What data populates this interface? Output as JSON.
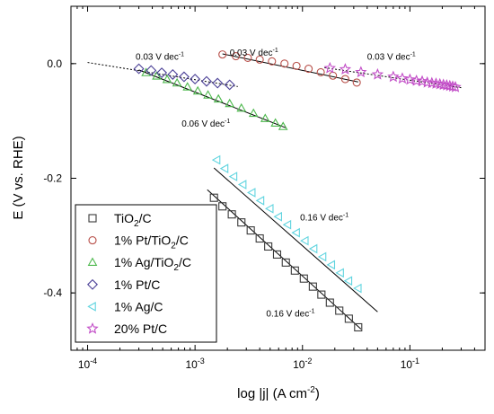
{
  "chart_data": {
    "type": "scatter",
    "title": "",
    "xlabel": {
      "main": "log |j| (A cm",
      "sup": "-2",
      "tail": ")"
    },
    "ylabel": "E (V vs. RHE)",
    "x_scale": "log",
    "xlim": [
      7e-05,
      0.5
    ],
    "ylim": [
      -0.5,
      0.1
    ],
    "grid": false,
    "legend_position": "bottom-left",
    "x_ticks": [
      {
        "value": 0.0001,
        "base": "10",
        "exp": "-4"
      },
      {
        "value": 0.001,
        "base": "10",
        "exp": "-3"
      },
      {
        "value": 0.01,
        "base": "10",
        "exp": "-2"
      },
      {
        "value": 0.1,
        "base": "10",
        "exp": "-1"
      }
    ],
    "y_ticks": [
      {
        "value": 0.0,
        "label": "0.0"
      },
      {
        "value": -0.2,
        "label": "-0.2"
      },
      {
        "value": -0.4,
        "label": "-0.4"
      }
    ],
    "series": [
      {
        "name": {
          "pre": "TiO",
          "sub": "2",
          "post": "/C"
        },
        "marker": "square",
        "color": "#3a3a3a",
        "x": [
          0.0015,
          0.0018,
          0.0022,
          0.0027,
          0.0033,
          0.004,
          0.0048,
          0.0058,
          0.007,
          0.0085,
          0.0103,
          0.0125,
          0.015,
          0.018,
          0.022,
          0.027,
          0.033
        ],
        "y": [
          -0.234,
          -0.249,
          -0.263,
          -0.277,
          -0.291,
          -0.305,
          -0.319,
          -0.333,
          -0.347,
          -0.361,
          -0.375,
          -0.389,
          -0.403,
          -0.417,
          -0.431,
          -0.445,
          -0.46
        ],
        "fit": {
          "x": [
            0.0013,
            0.035
          ],
          "y": [
            -0.22,
            -0.463
          ]
        }
      },
      {
        "name": {
          "pre": "1% Pt/TiO",
          "sub": "2",
          "post": "/C"
        },
        "marker": "circle",
        "color": "#b8504a",
        "x": [
          0.0018,
          0.0024,
          0.0031,
          0.004,
          0.0052,
          0.0068,
          0.0088,
          0.0114,
          0.0148,
          0.0192,
          0.025,
          0.032
        ],
        "y": [
          0.016,
          0.013,
          0.01,
          0.007,
          0.004,
          0.0,
          -0.004,
          -0.009,
          -0.015,
          -0.021,
          -0.027,
          -0.033
        ],
        "fit": {
          "x": [
            0.0018,
            0.033
          ],
          "y": [
            0.017,
            -0.032
          ]
        }
      },
      {
        "name": {
          "pre": "1% Ag/TiO",
          "sub": "2",
          "post": "/C"
        },
        "marker": "triangle-up",
        "color": "#4cb84c",
        "x": [
          0.00035,
          0.00044,
          0.00055,
          0.00068,
          0.00085,
          0.00106,
          0.00132,
          0.00165,
          0.0021,
          0.0027,
          0.0035,
          0.0045,
          0.0056,
          0.0066
        ],
        "y": [
          -0.016,
          -0.022,
          -0.028,
          -0.034,
          -0.041,
          -0.048,
          -0.055,
          -0.062,
          -0.07,
          -0.078,
          -0.087,
          -0.096,
          -0.104,
          -0.11
        ],
        "fit": {
          "x": [
            0.0003,
            0.007
          ],
          "y": [
            -0.011,
            -0.112
          ]
        }
      },
      {
        "name": {
          "pre": "1% Pt/C",
          "sub": "",
          "post": ""
        },
        "marker": "diamond",
        "color": "#4a3f96",
        "x": [
          0.0003,
          0.00039,
          0.00049,
          0.00062,
          0.00079,
          0.001,
          0.00128,
          0.00162,
          0.0021
        ],
        "y": [
          -0.009,
          -0.012,
          -0.016,
          -0.019,
          -0.023,
          -0.027,
          -0.031,
          -0.034,
          -0.037
        ],
        "fit": {
          "x": [
            0.0001,
            0.0025
          ],
          "y": [
            0.002,
            -0.04
          ]
        }
      },
      {
        "name": {
          "pre": "1% Ag/C",
          "sub": "",
          "post": ""
        },
        "marker": "triangle-left",
        "color": "#5fd4df",
        "x": [
          0.0016,
          0.0019,
          0.0023,
          0.0028,
          0.0034,
          0.0041,
          0.005,
          0.006,
          0.0073,
          0.0088,
          0.0106,
          0.0128,
          0.0155,
          0.0187,
          0.0226,
          0.027,
          0.033
        ],
        "y": [
          -0.168,
          -0.183,
          -0.197,
          -0.211,
          -0.225,
          -0.239,
          -0.253,
          -0.267,
          -0.281,
          -0.295,
          -0.309,
          -0.323,
          -0.337,
          -0.351,
          -0.365,
          -0.379,
          -0.392
        ],
        "fit": {
          "x": [
            0.0015,
            0.05
          ],
          "y": [
            -0.182,
            -0.433
          ]
        }
      },
      {
        "name": {
          "pre": "20% Pt/C",
          "sub": "",
          "post": ""
        },
        "marker": "star",
        "color": "#c24dc7",
        "x": [
          0.018,
          0.025,
          0.035,
          0.05,
          0.07,
          0.085,
          0.1,
          0.115,
          0.13,
          0.145,
          0.16,
          0.175,
          0.19,
          0.205,
          0.22,
          0.235,
          0.25,
          0.265
        ],
        "y": [
          -0.008,
          -0.01,
          -0.015,
          -0.019,
          -0.023,
          -0.026,
          -0.028,
          -0.03,
          -0.031,
          -0.033,
          -0.034,
          -0.035,
          -0.036,
          -0.037,
          -0.038,
          -0.039,
          -0.04,
          -0.041
        ],
        "fit": {
          "x": [
            0.016,
            0.3
          ],
          "y": [
            -0.007,
            -0.042
          ]
        }
      }
    ],
    "annotations": [
      {
        "text": "0.03 V dec",
        "sup": "-1",
        "x": 0.00028,
        "y": 0.007
      },
      {
        "text": "0.03 V dec",
        "sup": "-1",
        "x": 0.0021,
        "y": 0.014
      },
      {
        "text": "0.03 V dec",
        "sup": "-1",
        "x": 0.04,
        "y": 0.007
      },
      {
        "text": "0.06 V dec",
        "sup": "-1",
        "x": 0.00075,
        "y": -0.11
      },
      {
        "text": "0.16 V dec",
        "sup": "-1",
        "x": 0.0095,
        "y": -0.274
      },
      {
        "text": "0.16 V dec",
        "sup": "-1",
        "x": 0.0046,
        "y": -0.441
      }
    ]
  }
}
